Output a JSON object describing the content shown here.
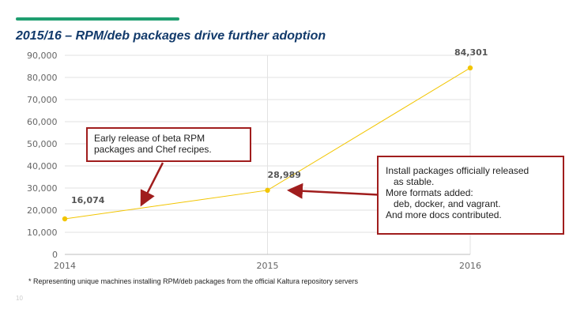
{
  "slide": {
    "title": "2015/16 – RPM/deb packages drive further adoption",
    "footnote": "* Representing unique machines installing RPM/deb packages from the official Kaltura repository servers",
    "page_number": "10",
    "accent_color": "#1f9e70",
    "title_color": "#123a6b"
  },
  "chart_data": {
    "type": "line",
    "title": "",
    "xlabel": "",
    "ylabel": "",
    "categories": [
      "2014",
      "2015",
      "2016"
    ],
    "series": [
      {
        "values": [
          16074,
          28989,
          84301
        ],
        "data_labels": [
          "16,074",
          "28,989",
          "84,301"
        ],
        "color": "#f2c500"
      }
    ],
    "ylim": [
      0,
      90000
    ],
    "yticks": [
      0,
      10000,
      20000,
      30000,
      40000,
      50000,
      60000,
      70000,
      80000,
      90000
    ],
    "ytick_labels": [
      "0",
      "10,000",
      "20,000",
      "30,000",
      "40,000",
      "50,000",
      "60,000",
      "70,000",
      "80,000",
      "90,000"
    ],
    "grid": true,
    "legend": "none",
    "gridline_color": "#e2e2e2",
    "arrow_color": "#a01d1d"
  },
  "callouts": [
    {
      "lines": [
        "Early release of beta RPM",
        "packages and Chef recipes."
      ]
    },
    {
      "lines": [
        "Install packages officially released",
        "as stable.",
        "More formats added:",
        "deb, docker, and vagrant.",
        "And more docs contributed."
      ]
    }
  ]
}
